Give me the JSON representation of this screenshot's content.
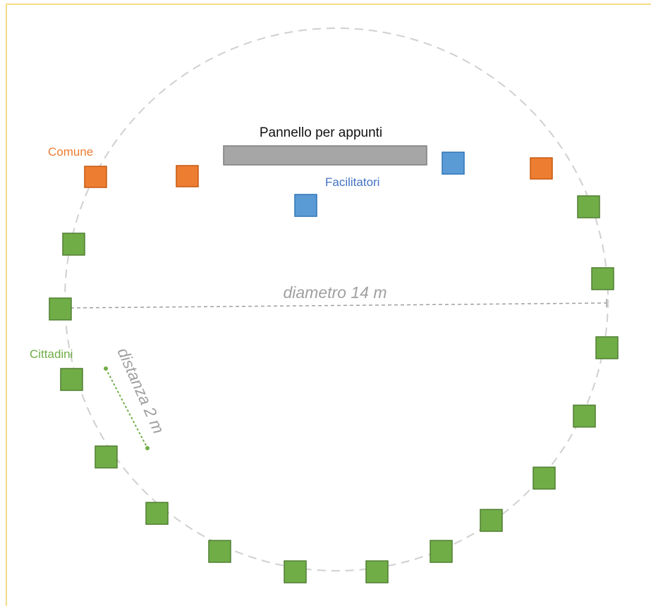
{
  "board_label": "Pannello per appunti",
  "groups": {
    "municipality": {
      "label": "Comune",
      "color": "#ed7d31"
    },
    "facilitators": {
      "label": "Facilitatori",
      "color": "#5b9bd5"
    },
    "citizens": {
      "label": "Cittadini",
      "color": "#70ad47"
    }
  },
  "diameter_label": "diametro 14 m",
  "distance_label": "distanza 2 m",
  "board_color": "#a6a6a6",
  "circle_color": "#d0d0d0",
  "annotation_color": "#a0a0a0",
  "frame_color": "#f6dc8a"
}
